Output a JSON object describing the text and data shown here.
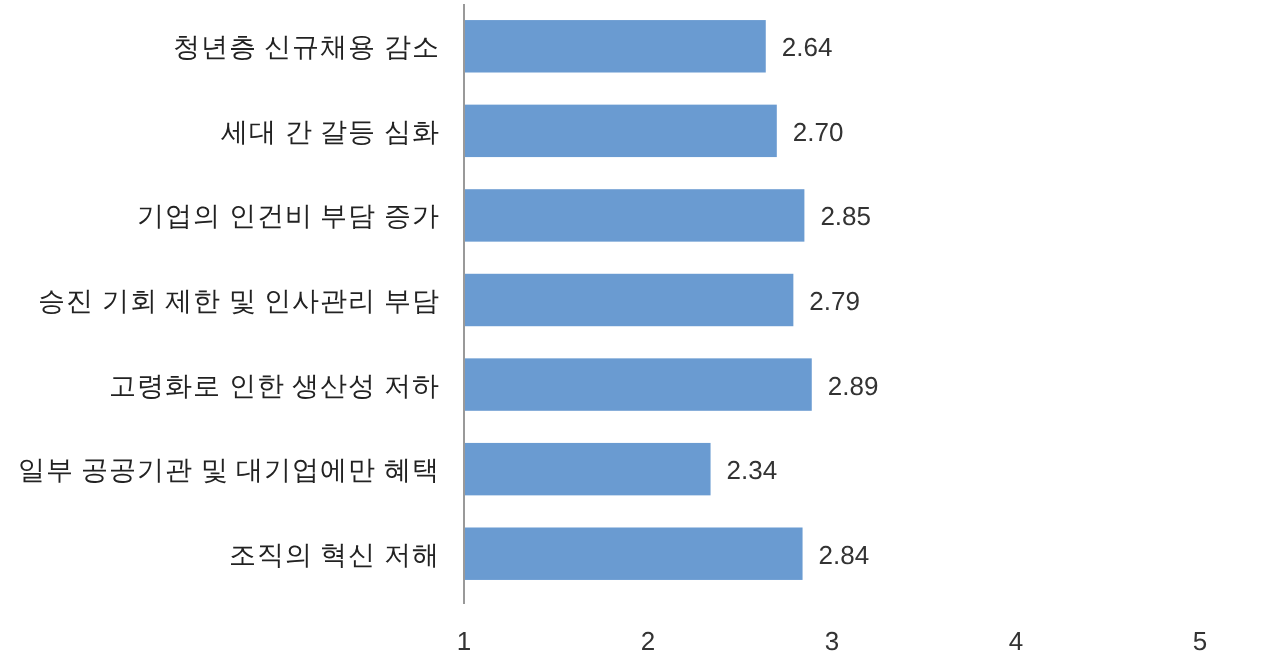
{
  "chart_data": {
    "type": "bar",
    "orientation": "horizontal",
    "categories": [
      "청년층 신규채용 감소",
      "세대 간 갈등 심화",
      "기업의 인건비 부담 증가",
      "승진 기회 제한 및 인사관리 부담",
      "고령화로 인한 생산성 저하",
      "일부 공공기관 및 대기업에만 혜택",
      "조직의 혁신 저해"
    ],
    "values": [
      2.64,
      2.7,
      2.85,
      2.79,
      2.89,
      2.34,
      2.84
    ],
    "color": "#6a9bd1",
    "xlim": [
      1,
      5
    ],
    "xticks": [
      1,
      2,
      3,
      4,
      5
    ],
    "value_labels": [
      "2.64",
      "2.70",
      "2.85",
      "2.79",
      "2.89",
      "2.34",
      "2.84"
    ],
    "grid": false
  }
}
